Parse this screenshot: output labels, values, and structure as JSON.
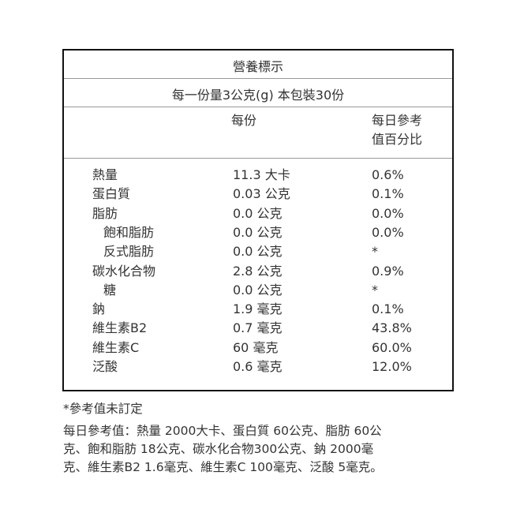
{
  "title": "營養標示",
  "serving": "每一份量3公克(g)  本包裝30份",
  "headers": {
    "per_serving": "每份",
    "daily_line1": "每日參考",
    "daily_line2": "值百分比"
  },
  "rows": [
    {
      "name": "熱量",
      "value": "11.3 大卡",
      "pct": "0.6%"
    },
    {
      "name": "蛋白質",
      "value": "0.03 公克",
      "pct": "0.1%"
    },
    {
      "name": "脂肪",
      "value": "0.0 公克",
      "pct": "0.0%"
    },
    {
      "name": "飽和脂肪",
      "value": "0.0 公克",
      "pct": "0.0%",
      "indent": true
    },
    {
      "name": "反式脂肪",
      "value": "0.0 公克",
      "pct": "*",
      "indent": true
    },
    {
      "name": "碳水化合物",
      "value": "2.8 公克",
      "pct": "0.9%"
    },
    {
      "name": "糖",
      "value": "0.0 公克",
      "pct": "*",
      "indent": true
    },
    {
      "name": "鈉",
      "value": "1.9 毫克",
      "pct": "0.1%"
    },
    {
      "name": "維生素B2",
      "value": "0.7 毫克",
      "pct": "43.8%"
    },
    {
      "name": "維生素C",
      "value": "60 毫克",
      "pct": "60.0%"
    },
    {
      "name": "泛酸",
      "value": "0.6 毫克",
      "pct": "12.0%"
    }
  ],
  "footnote": "*參考值未訂定",
  "reference": [
    "每日參考值：熱量 2000大卡、蛋白質 60公克、脂肪 60公",
    "克、飽和脂肪 18公克、碳水化合物300公克、鈉 2000毫",
    "克、維生素B2 1.6毫克、維生素C 100毫克、泛酸 5毫克。"
  ]
}
